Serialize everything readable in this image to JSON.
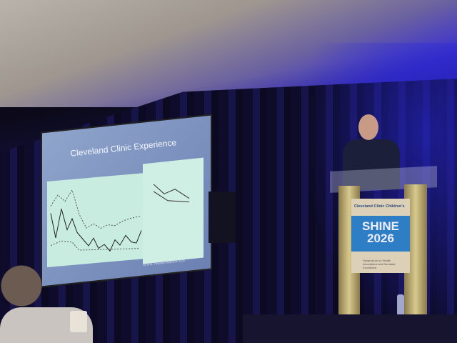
{
  "slide": {
    "title": "Cleveland Clinic Experience",
    "citation": "Ali et al. Pediatric Research 2025"
  },
  "podium_banner": {
    "logo_text": "Cleveland Clinic Children's",
    "event_line1": "SHINE",
    "event_line2": "2026",
    "subtitle": "Symposium on Health Innovations and Neonatal Excellence",
    "accent_color": "#2d7ec4"
  }
}
